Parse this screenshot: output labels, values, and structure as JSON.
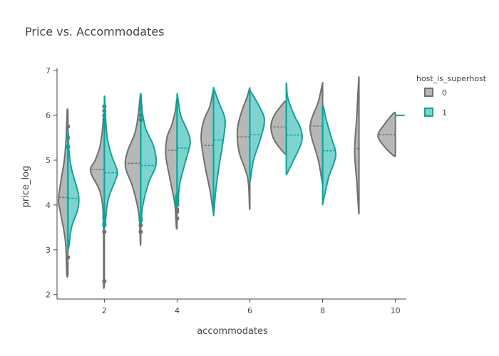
{
  "chart_data": {
    "type": "violin",
    "title": "Price vs. Accommodates",
    "xlabel": "accommodates",
    "ylabel": "price_log",
    "xlim": [
      0.7,
      10.3
    ],
    "ylim": [
      1.9,
      7.05
    ],
    "x_ticks": [
      2,
      4,
      6,
      8,
      10
    ],
    "y_ticks": [
      2,
      3,
      4,
      5,
      6,
      7
    ],
    "legend": {
      "title": "host_is_superhost",
      "position": "right",
      "entries": [
        "0",
        "1"
      ]
    },
    "colors": {
      "series_0_line": "#707070",
      "series_0_fill": "rgba(112,112,112,0.5)",
      "series_1_line": "#00a89d",
      "series_1_fill": "rgba(0,168,157,0.5)",
      "axis": "#444444",
      "text": "#444444"
    },
    "series": [
      {
        "name": "0",
        "side": "negative",
        "violins": [
          {
            "x": 1,
            "ymin": 2.45,
            "ymax": 6.1,
            "mean": 4.17,
            "profile": [
              [
                2.45,
                0.03
              ],
              [
                3.2,
                0.07
              ],
              [
                3.8,
                0.2
              ],
              [
                4.1,
                0.26
              ],
              [
                4.5,
                0.2
              ],
              [
                5.0,
                0.1
              ],
              [
                5.5,
                0.05
              ],
              [
                6.1,
                0.02
              ]
            ],
            "outliers": [
              2.83,
              5.3,
              5.5,
              5.75
            ]
          },
          {
            "x": 2,
            "ymin": 2.2,
            "ymax": 6.0,
            "mean": 4.79,
            "profile": [
              [
                2.2,
                0.02
              ],
              [
                3.0,
                0.02
              ],
              [
                3.8,
                0.03
              ],
              [
                4.3,
                0.12
              ],
              [
                4.75,
                0.38
              ],
              [
                5.0,
                0.25
              ],
              [
                5.3,
                0.12
              ],
              [
                5.7,
                0.05
              ],
              [
                6.0,
                0.02
              ]
            ],
            "outliers": [
              2.3,
              3.4,
              3.55,
              3.7,
              3.75,
              5.8,
              5.9,
              6.0,
              6.1,
              6.2
            ]
          },
          {
            "x": 3,
            "ymin": 3.15,
            "ymax": 6.45,
            "mean": 4.93,
            "profile": [
              [
                3.15,
                0.01
              ],
              [
                3.8,
                0.05
              ],
              [
                4.4,
                0.22
              ],
              [
                4.85,
                0.42
              ],
              [
                5.2,
                0.36
              ],
              [
                5.6,
                0.16
              ],
              [
                6.0,
                0.07
              ],
              [
                6.45,
                0.01
              ]
            ],
            "outliers": [
              3.4,
              3.55,
              3.65,
              5.9,
              6.0,
              6.15,
              6.2
            ]
          },
          {
            "x": 4,
            "ymin": 3.5,
            "ymax": 6.35,
            "mean": 5.22,
            "profile": [
              [
                3.5,
                0.02
              ],
              [
                4.0,
                0.06
              ],
              [
                4.6,
                0.2
              ],
              [
                5.1,
                0.31
              ],
              [
                5.5,
                0.28
              ],
              [
                5.8,
                0.14
              ],
              [
                6.1,
                0.05
              ],
              [
                6.35,
                0.01
              ]
            ],
            "outliers": [
              3.7,
              3.85,
              3.9,
              4.0,
              4.05,
              4.1
            ]
          },
          {
            "x": 5,
            "ymin": 3.85,
            "ymax": 6.55,
            "mean": 5.33,
            "profile": [
              [
                3.85,
                0.01
              ],
              [
                4.3,
                0.09
              ],
              [
                4.9,
                0.24
              ],
              [
                5.5,
                0.34
              ],
              [
                5.9,
                0.26
              ],
              [
                6.2,
                0.1
              ],
              [
                6.55,
                0.01
              ]
            ],
            "outliers": []
          },
          {
            "x": 6,
            "ymin": 3.95,
            "ymax": 6.6,
            "mean": 5.52,
            "profile": [
              [
                3.95,
                0.01
              ],
              [
                4.6,
                0.06
              ],
              [
                5.2,
                0.3
              ],
              [
                5.7,
                0.34
              ],
              [
                6.1,
                0.22
              ],
              [
                6.4,
                0.08
              ],
              [
                6.6,
                0.01
              ]
            ],
            "outliers": []
          },
          {
            "x": 7,
            "ymin": 5.15,
            "ymax": 6.3,
            "mean": 5.74,
            "profile": [
              [
                5.15,
                0.05
              ],
              [
                5.45,
                0.33
              ],
              [
                5.75,
                0.42
              ],
              [
                6.0,
                0.33
              ],
              [
                6.3,
                0.05
              ]
            ],
            "outliers": []
          },
          {
            "x": 8,
            "ymin": 4.5,
            "ymax": 6.7,
            "mean": 5.76,
            "profile": [
              [
                4.5,
                0.01
              ],
              [
                5.0,
                0.12
              ],
              [
                5.6,
                0.33
              ],
              [
                5.9,
                0.31
              ],
              [
                6.3,
                0.12
              ],
              [
                6.7,
                0.01
              ]
            ],
            "outliers": []
          },
          {
            "x": 9,
            "ymin": 3.85,
            "ymax": 6.8,
            "mean": 5.26,
            "profile": [
              [
                3.85,
                0.01
              ],
              [
                4.5,
                0.06
              ],
              [
                5.2,
                0.12
              ],
              [
                6.0,
                0.06
              ],
              [
                6.8,
                0.01
              ]
            ],
            "outliers": []
          },
          {
            "x": 10,
            "ymin": 5.1,
            "ymax": 6.05,
            "mean": 5.57,
            "profile": [
              [
                5.1,
                0.05
              ],
              [
                5.3,
                0.3
              ],
              [
                5.55,
                0.48
              ],
              [
                5.8,
                0.3
              ],
              [
                6.05,
                0.05
              ]
            ],
            "outliers": []
          }
        ]
      },
      {
        "name": "1",
        "side": "positive",
        "violins": [
          {
            "x": 1,
            "ymin": 3.05,
            "ymax": 5.6,
            "mean": 4.15,
            "profile": [
              [
                3.05,
                0.02
              ],
              [
                3.5,
                0.1
              ],
              [
                3.9,
                0.27
              ],
              [
                4.15,
                0.3
              ],
              [
                4.4,
                0.24
              ],
              [
                4.8,
                0.1
              ],
              [
                5.2,
                0.03
              ],
              [
                5.6,
                0.01
              ]
            ],
            "outliers": [
              5.3
            ]
          },
          {
            "x": 2,
            "ymin": 3.55,
            "ymax": 6.4,
            "mean": 4.72,
            "profile": [
              [
                3.55,
                0.02
              ],
              [
                4.1,
                0.1
              ],
              [
                4.55,
                0.3
              ],
              [
                4.75,
                0.36
              ],
              [
                5.1,
                0.2
              ],
              [
                5.5,
                0.08
              ],
              [
                6.0,
                0.03
              ],
              [
                6.4,
                0.01
              ]
            ],
            "outliers": [
              3.55,
              3.6
            ]
          },
          {
            "x": 3,
            "ymin": 3.6,
            "ymax": 6.45,
            "mean": 4.88,
            "profile": [
              [
                3.6,
                0.01
              ],
              [
                4.0,
                0.06
              ],
              [
                4.5,
                0.22
              ],
              [
                4.9,
                0.42
              ],
              [
                5.3,
                0.36
              ],
              [
                5.7,
                0.14
              ],
              [
                6.1,
                0.04
              ],
              [
                6.45,
                0.01
              ]
            ],
            "outliers": [
              3.65,
              3.7
            ]
          },
          {
            "x": 4,
            "ymin": 4.05,
            "ymax": 6.45,
            "mean": 5.27,
            "profile": [
              [
                4.05,
                0.02
              ],
              [
                4.5,
                0.08
              ],
              [
                5.0,
                0.24
              ],
              [
                5.4,
                0.36
              ],
              [
                5.7,
                0.26
              ],
              [
                6.0,
                0.1
              ],
              [
                6.45,
                0.01
              ]
            ],
            "outliers": [
              4.0,
              4.05,
              4.1,
              4.15,
              4.2
            ]
          },
          {
            "x": 5,
            "ymin": 3.8,
            "ymax": 6.6,
            "mean": 5.45,
            "profile": [
              [
                3.8,
                0.01
              ],
              [
                4.3,
                0.06
              ],
              [
                4.9,
                0.16
              ],
              [
                5.4,
                0.26
              ],
              [
                5.9,
                0.32
              ],
              [
                6.3,
                0.14
              ],
              [
                6.6,
                0.01
              ]
            ],
            "outliers": []
          },
          {
            "x": 6,
            "ymin": 4.55,
            "ymax": 6.55,
            "mean": 5.57,
            "profile": [
              [
                4.55,
                0.01
              ],
              [
                5.0,
                0.1
              ],
              [
                5.5,
                0.3
              ],
              [
                5.9,
                0.4
              ],
              [
                6.2,
                0.26
              ],
              [
                6.55,
                0.01
              ]
            ],
            "outliers": []
          },
          {
            "x": 7,
            "ymin": 4.7,
            "ymax": 6.7,
            "mean": 5.56,
            "profile": [
              [
                4.7,
                0.02
              ],
              [
                5.0,
                0.2
              ],
              [
                5.4,
                0.42
              ],
              [
                5.7,
                0.4
              ],
              [
                6.0,
                0.22
              ],
              [
                6.4,
                0.04
              ],
              [
                6.7,
                0.01
              ]
            ],
            "outliers": []
          },
          {
            "x": 8,
            "ymin": 4.05,
            "ymax": 6.2,
            "mean": 5.21,
            "profile": [
              [
                4.05,
                0.01
              ],
              [
                4.6,
                0.16
              ],
              [
                5.1,
                0.36
              ],
              [
                5.5,
                0.24
              ],
              [
                5.9,
                0.1
              ],
              [
                6.2,
                0.02
              ]
            ],
            "outliers": []
          },
          {
            "x": 10,
            "ymin": 6.0,
            "ymax": 6.0,
            "mean": 6.0,
            "profile": [],
            "outliers": []
          }
        ]
      }
    ]
  }
}
